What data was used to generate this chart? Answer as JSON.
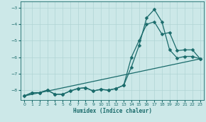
{
  "xlabel": "Humidex (Indice chaleur)",
  "bg_color": "#cce8e8",
  "grid_color": "#b0d4d4",
  "line_color": "#1a6b6b",
  "xlim": [
    -0.5,
    23.5
  ],
  "ylim": [
    -8.6,
    -2.6
  ],
  "yticks": [
    -8,
    -7,
    -6,
    -5,
    -4,
    -3
  ],
  "xticks": [
    0,
    1,
    2,
    3,
    4,
    5,
    6,
    7,
    8,
    9,
    10,
    11,
    12,
    13,
    14,
    15,
    16,
    17,
    18,
    19,
    20,
    21,
    22,
    23
  ],
  "line1_x": [
    0,
    1,
    2,
    3,
    4,
    5,
    6,
    7,
    8,
    9,
    10,
    11,
    12,
    13,
    14,
    15,
    16,
    17,
    18,
    19,
    20,
    21,
    22,
    23
  ],
  "line1_y": [
    -8.35,
    -8.15,
    -8.15,
    -8.0,
    -8.25,
    -8.25,
    -8.05,
    -7.9,
    -7.85,
    -8.05,
    -7.95,
    -8.0,
    -7.9,
    -7.7,
    -6.6,
    -5.3,
    -3.6,
    -3.1,
    -3.85,
    -5.55,
    -6.05,
    -5.95,
    -5.95,
    -6.1
  ],
  "line2_x": [
    0,
    1,
    2,
    3,
    4,
    5,
    6,
    7,
    8,
    9,
    10,
    11,
    12,
    13,
    14,
    15,
    16,
    17,
    18,
    19,
    20,
    21,
    22,
    23
  ],
  "line2_y": [
    -8.35,
    -8.15,
    -8.15,
    -8.0,
    -8.25,
    -8.25,
    -8.05,
    -7.9,
    -7.85,
    -8.05,
    -7.95,
    -8.0,
    -7.9,
    -7.7,
    -6.0,
    -5.0,
    -4.0,
    -3.85,
    -4.6,
    -4.5,
    -5.6,
    -5.55,
    -5.55,
    -6.1
  ],
  "line3_x": [
    0,
    23
  ],
  "line3_y": [
    -8.35,
    -6.1
  ],
  "marker_size": 2.5,
  "linewidth": 0.9
}
